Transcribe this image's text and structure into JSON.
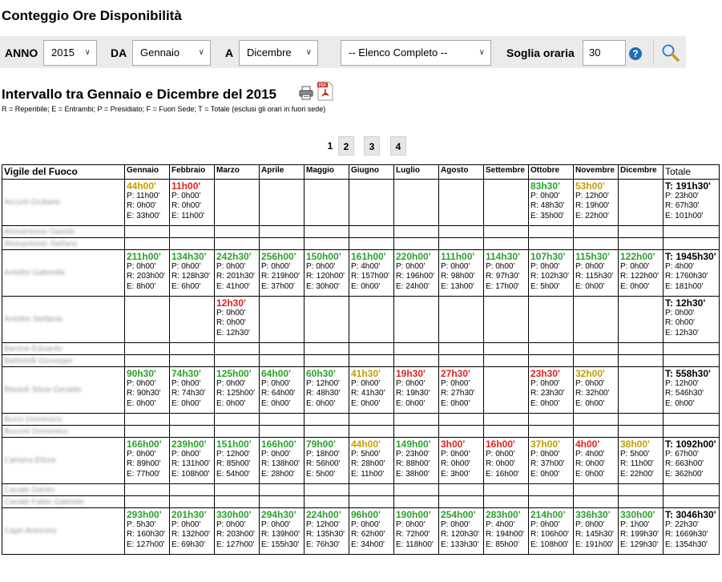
{
  "page_title": "Conteggio Ore Disponibilità",
  "filters": {
    "anno_label": "ANNO",
    "anno_value": "2015",
    "da_label": "DA",
    "da_value": "Gennaio",
    "a_label": "A",
    "a_value": "Dicembre",
    "elenco_value": "-- Elenco Completo --",
    "soglia_label": "Soglia oraria",
    "soglia_value": "30",
    "help_icon": "question-circle-icon",
    "search_icon": "magnifier-icon"
  },
  "range_title": "Intervallo tra Gennaio e Dicembre del 2015",
  "legend": "R = Reperibile; E = Entrambi; P = Presidiato; F = Fuori Sede; T = Totale (esclusi gli orari in fuori sede)",
  "pagination": [
    "1",
    "2",
    "3",
    "4"
  ],
  "colors": {
    "green": "#2ba12b",
    "red": "#e02020",
    "olive": "#c0a000",
    "filter_bg": "#ebebeb",
    "help": "#1f6fb6"
  },
  "table": {
    "columns": [
      "Vigile del Fuoco",
      "Gennaio",
      "Febbraio",
      "Marzo",
      "Aprile",
      "Maggio",
      "Giugno",
      "Luglio",
      "Agosto",
      "Settembre",
      "Ottobre",
      "Novembre",
      "Dicembre",
      "Totale"
    ],
    "rows": [
      {
        "name": "Accurti Giuliano",
        "height": "tall",
        "cells": [
          {
            "h": "44h00'",
            "c": "olive",
            "l": [
              "P: 11h00'",
              "R: 0h00'",
              "E: 33h00'"
            ]
          },
          {
            "h": "11h00'",
            "c": "red",
            "l": [
              "P: 0h00'",
              "R: 0h00'",
              "E: 11h00'"
            ]
          },
          null,
          null,
          null,
          null,
          null,
          null,
          null,
          {
            "h": "83h30'",
            "c": "green",
            "l": [
              "P: 0h00'",
              "R: 48h30'",
              "E: 35h00'"
            ]
          },
          {
            "h": "53h00'",
            "c": "olive",
            "l": [
              "P: 12h00'",
              "R: 19h00'",
              "E: 22h00'"
            ]
          },
          null,
          {
            "h": "T: 191h30'",
            "c": "black",
            "l": [
              "P: 23h00'",
              "R: 67h30'",
              "E: 101h00'"
            ]
          }
        ]
      },
      {
        "name": "Aloisantonio Davide",
        "height": "short",
        "cells": [
          null,
          null,
          null,
          null,
          null,
          null,
          null,
          null,
          null,
          null,
          null,
          null,
          null
        ]
      },
      {
        "name": "Aloisantonio Stefano",
        "height": "short",
        "cells": [
          null,
          null,
          null,
          null,
          null,
          null,
          null,
          null,
          null,
          null,
          null,
          null,
          null
        ]
      },
      {
        "name": "Antolini Gabriella",
        "height": "tall",
        "cells": [
          {
            "h": "211h00'",
            "c": "green",
            "l": [
              "P: 0h00'",
              "R: 203h00'",
              "E: 8h00'"
            ]
          },
          {
            "h": "134h30'",
            "c": "green",
            "l": [
              "P: 0h00'",
              "R: 128h30'",
              "E: 6h00'"
            ]
          },
          {
            "h": "242h30'",
            "c": "green",
            "l": [
              "P: 0h00'",
              "R: 201h30'",
              "E: 41h00'"
            ]
          },
          {
            "h": "256h00'",
            "c": "green",
            "l": [
              "P: 0h00'",
              "R: 219h00'",
              "E: 37h00'"
            ]
          },
          {
            "h": "150h00'",
            "c": "green",
            "l": [
              "P: 0h00'",
              "R: 120h00'",
              "E: 30h00'"
            ]
          },
          {
            "h": "161h00'",
            "c": "green",
            "l": [
              "P: 4h00'",
              "R: 157h00'",
              "E: 0h00'"
            ]
          },
          {
            "h": "220h00'",
            "c": "green",
            "l": [
              "P: 0h00'",
              "R: 196h00'",
              "E: 24h00'"
            ]
          },
          {
            "h": "111h00'",
            "c": "green",
            "l": [
              "P: 0h00'",
              "R: 98h00'",
              "E: 13h00'"
            ]
          },
          {
            "h": "114h30'",
            "c": "green",
            "l": [
              "P: 0h00'",
              "R: 97h30'",
              "E: 17h00'"
            ]
          },
          {
            "h": "107h30'",
            "c": "green",
            "l": [
              "P: 0h00'",
              "R: 102h30'",
              "E: 5h00'"
            ]
          },
          {
            "h": "115h30'",
            "c": "green",
            "l": [
              "P: 0h00'",
              "R: 115h30'",
              "E: 0h00'"
            ]
          },
          {
            "h": "122h00'",
            "c": "green",
            "l": [
              "P: 0h00'",
              "R: 122h00'",
              "E: 0h00'"
            ]
          },
          {
            "h": "T: 1945h30'",
            "c": "black",
            "l": [
              "P: 4h00'",
              "R: 1760h30'",
              "E: 181h00'"
            ]
          }
        ]
      },
      {
        "name": "Antolini Stefania",
        "height": "tall",
        "cells": [
          null,
          null,
          {
            "h": "12h30'",
            "c": "red",
            "l": [
              "P: 0h00'",
              "R: 0h00'",
              "E: 12h30'"
            ]
          },
          null,
          null,
          null,
          null,
          null,
          null,
          null,
          null,
          null,
          {
            "h": "T: 12h30'",
            "c": "black",
            "l": [
              "P: 0h00'",
              "R: 0h00'",
              "E: 12h30'"
            ]
          }
        ]
      },
      {
        "name": "Barone Edoardo",
        "height": "short",
        "cells": [
          null,
          null,
          null,
          null,
          null,
          null,
          null,
          null,
          null,
          null,
          null,
          null,
          null
        ]
      },
      {
        "name": "Battistelli Giuseppe",
        "height": "short",
        "cells": [
          null,
          null,
          null,
          null,
          null,
          null,
          null,
          null,
          null,
          null,
          null,
          null,
          null
        ]
      },
      {
        "name": "Blasioli Silvia Geraldo",
        "height": "tall",
        "cells": [
          {
            "h": "90h30'",
            "c": "green",
            "l": [
              "P: 0h00'",
              "R: 90h30'",
              "E: 0h00'"
            ]
          },
          {
            "h": "74h30'",
            "c": "green",
            "l": [
              "P: 0h00'",
              "R: 74h30'",
              "E: 0h00'"
            ]
          },
          {
            "h": "125h00'",
            "c": "green",
            "l": [
              "P: 0h00'",
              "R: 125h00'",
              "E: 0h00'"
            ]
          },
          {
            "h": "64h00'",
            "c": "green",
            "l": [
              "P: 0h00'",
              "R: 64h00'",
              "E: 0h00'"
            ]
          },
          {
            "h": "60h30'",
            "c": "green",
            "l": [
              "P: 12h00'",
              "R: 48h30'",
              "E: 0h00'"
            ]
          },
          {
            "h": "41h30'",
            "c": "olive",
            "l": [
              "P: 0h00'",
              "R: 41h30'",
              "E: 0h00'"
            ]
          },
          {
            "h": "19h30'",
            "c": "red",
            "l": [
              "P: 0h00'",
              "R: 19h30'",
              "E: 0h00'"
            ]
          },
          {
            "h": "27h30'",
            "c": "red",
            "l": [
              "P: 0h00'",
              "R: 27h30'",
              "E: 0h00'"
            ]
          },
          null,
          {
            "h": "23h30'",
            "c": "red",
            "l": [
              "P: 0h00'",
              "R: 23h30'",
              "E: 0h00'"
            ]
          },
          {
            "h": "32h00'",
            "c": "olive",
            "l": [
              "P: 0h00'",
              "R: 32h00'",
              "E: 0h00'"
            ]
          },
          null,
          {
            "h": "T: 558h30'",
            "c": "black",
            "l": [
              "P: 12h00'",
              "R: 546h30'",
              "E: 0h00'"
            ]
          }
        ]
      },
      {
        "name": "Bucci Domenico",
        "height": "short",
        "cells": [
          null,
          null,
          null,
          null,
          null,
          null,
          null,
          null,
          null,
          null,
          null,
          null,
          null
        ]
      },
      {
        "name": "Buccini Domenico",
        "height": "short",
        "cells": [
          null,
          null,
          null,
          null,
          null,
          null,
          null,
          null,
          null,
          null,
          null,
          null,
          null
        ]
      },
      {
        "name": "Camera Ettore",
        "height": "tall",
        "cells": [
          {
            "h": "166h00'",
            "c": "green",
            "l": [
              "P: 0h00'",
              "R: 89h00'",
              "E: 77h00'"
            ]
          },
          {
            "h": "239h00'",
            "c": "green",
            "l": [
              "P: 0h00'",
              "R: 131h00'",
              "E: 108h00'"
            ]
          },
          {
            "h": "151h00'",
            "c": "green",
            "l": [
              "P: 12h00'",
              "R: 85h00'",
              "E: 54h00'"
            ]
          },
          {
            "h": "166h00'",
            "c": "green",
            "l": [
              "P: 0h00'",
              "R: 138h00'",
              "E: 28h00'"
            ]
          },
          {
            "h": "79h00'",
            "c": "green",
            "l": [
              "P: 18h00'",
              "R: 56h00'",
              "E: 5h00'"
            ]
          },
          {
            "h": "44h00'",
            "c": "olive",
            "l": [
              "P: 5h00'",
              "R: 28h00'",
              "E: 11h00'"
            ]
          },
          {
            "h": "149h00'",
            "c": "green",
            "l": [
              "P: 23h00'",
              "R: 88h00'",
              "E: 38h00'"
            ]
          },
          {
            "h": "3h00'",
            "c": "red",
            "l": [
              "P: 0h00'",
              "R: 0h00'",
              "E: 3h00'"
            ]
          },
          {
            "h": "16h00'",
            "c": "red",
            "l": [
              "P: 0h00'",
              "R: 0h00'",
              "E: 16h00'"
            ]
          },
          {
            "h": "37h00'",
            "c": "olive",
            "l": [
              "P: 0h00'",
              "R: 37h00'",
              "E: 0h00'"
            ]
          },
          {
            "h": "4h00'",
            "c": "red",
            "l": [
              "P: 4h00'",
              "R: 0h00'",
              "E: 0h00'"
            ]
          },
          {
            "h": "38h00'",
            "c": "olive",
            "l": [
              "P: 5h00'",
              "R: 11h00'",
              "E: 22h00'"
            ]
          },
          {
            "h": "T: 1092h00'",
            "c": "black",
            "l": [
              "P: 67h00'",
              "R: 663h00'",
              "E: 362h00'"
            ]
          }
        ]
      },
      {
        "name": "Canale Danilo",
        "height": "short",
        "cells": [
          null,
          null,
          null,
          null,
          null,
          null,
          null,
          null,
          null,
          null,
          null,
          null,
          null
        ]
      },
      {
        "name": "Canale Fabio Gabriele",
        "height": "short",
        "cells": [
          null,
          null,
          null,
          null,
          null,
          null,
          null,
          null,
          null,
          null,
          null,
          null,
          null
        ]
      },
      {
        "name": "Capri Antonino",
        "height": "tall",
        "cells": [
          {
            "h": "293h00'",
            "c": "green",
            "l": [
              "P: 5h30'",
              "R: 160h30'",
              "E: 127h00'"
            ]
          },
          {
            "h": "201h30'",
            "c": "green",
            "l": [
              "P: 0h00'",
              "R: 132h00'",
              "E: 69h30'"
            ]
          },
          {
            "h": "330h00'",
            "c": "green",
            "l": [
              "P: 0h00'",
              "R: 203h00'",
              "E: 127h00'"
            ]
          },
          {
            "h": "294h30'",
            "c": "green",
            "l": [
              "P: 0h00'",
              "R: 139h00'",
              "E: 155h30'"
            ]
          },
          {
            "h": "224h00'",
            "c": "green",
            "l": [
              "P: 12h00'",
              "R: 135h30'",
              "E: 76h30'"
            ]
          },
          {
            "h": "96h00'",
            "c": "green",
            "l": [
              "P: 0h00'",
              "R: 62h00'",
              "E: 34h00'"
            ]
          },
          {
            "h": "190h00'",
            "c": "green",
            "l": [
              "P: 0h00'",
              "R: 72h00'",
              "E: 118h00'"
            ]
          },
          {
            "h": "254h00'",
            "c": "green",
            "l": [
              "P: 0h00'",
              "R: 120h30'",
              "E: 133h30'"
            ]
          },
          {
            "h": "283h00'",
            "c": "green",
            "l": [
              "P: 4h00'",
              "R: 194h00'",
              "E: 85h00'"
            ]
          },
          {
            "h": "214h00'",
            "c": "green",
            "l": [
              "P: 0h00'",
              "R: 106h00'",
              "E: 108h00'"
            ]
          },
          {
            "h": "336h30'",
            "c": "green",
            "l": [
              "P: 0h00'",
              "R: 145h30'",
              "E: 191h00'"
            ]
          },
          {
            "h": "330h00'",
            "c": "green",
            "l": [
              "P: 1h00'",
              "R: 199h30'",
              "E: 129h30'"
            ]
          },
          {
            "h": "T: 3046h30'",
            "c": "black",
            "l": [
              "P: 22h30'",
              "R: 1669h30'",
              "E: 1354h30'"
            ]
          }
        ]
      }
    ]
  }
}
